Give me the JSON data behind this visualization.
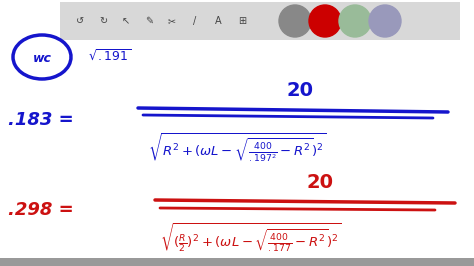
{
  "bg_color": "#f5f5f5",
  "white": "#ffffff",
  "blue": "#1515cc",
  "red": "#cc1111",
  "toolbar_color": "#d8d8d8",
  "gray_circle": "#888888",
  "green_circle": "#99bb99",
  "purple_circle": "#9999bb",
  "figsize": [
    4.74,
    2.66
  ],
  "dpi": 100,
  "eq1_lhs": ".183 =",
  "eq1_num": "20",
  "eq1_denom": "$\\sqrt{R^2+(\\omega L-\\sqrt{\\frac{400}{.197^2}-R^2})^2}$",
  "eq2_lhs": ".298 =",
  "eq2_num": "20",
  "eq2_denom": "$\\sqrt{(\\frac{R}{2})^2+(\\omega L-\\sqrt{\\frac{400}{.177}-R^2})^2}$",
  "wc_label": "wc",
  "sqrt191": "$\\sqrt{.191}$"
}
